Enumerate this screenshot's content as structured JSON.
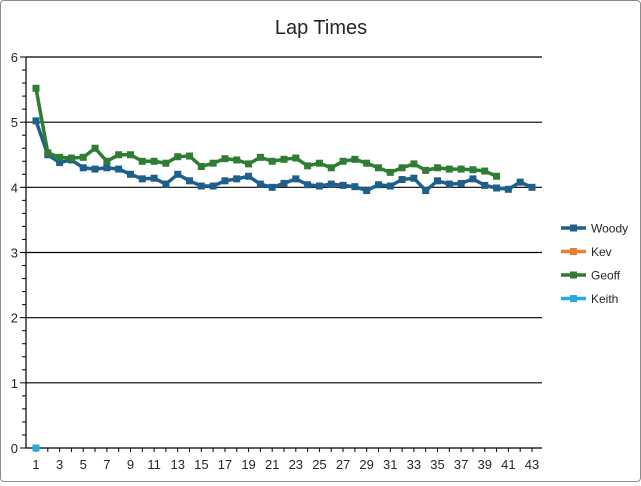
{
  "chart_data": {
    "type": "line",
    "title": "Lap Times",
    "xlabel": "",
    "ylabel": "",
    "ylim": [
      0,
      6
    ],
    "yticks": [
      "0",
      "1",
      "2",
      "3",
      "4",
      "5",
      "6"
    ],
    "xlim": [
      1,
      43
    ],
    "xtick_labels": [
      "1",
      "3",
      "5",
      "7",
      "9",
      "11",
      "13",
      "15",
      "17",
      "19",
      "21",
      "23",
      "25",
      "27",
      "29",
      "31",
      "33",
      "35",
      "37",
      "39",
      "41",
      "43"
    ],
    "grid": "horizontal major gridlines",
    "legend_position": "right",
    "series": [
      {
        "name": "Woody",
        "color": "#1f5f8b",
        "marker": "square",
        "values": [
          5.02,
          4.5,
          4.38,
          4.42,
          4.3,
          4.28,
          4.3,
          4.28,
          4.2,
          4.13,
          4.14,
          4.05,
          4.2,
          4.1,
          4.02,
          4.02,
          4.1,
          4.13,
          4.17,
          4.05,
          4.0,
          4.06,
          4.13,
          4.04,
          4.02,
          4.05,
          4.03,
          4.01,
          3.95,
          4.04,
          4.02,
          4.12,
          4.14,
          3.95,
          4.1,
          4.05,
          4.06,
          4.13,
          4.03,
          3.99,
          3.97,
          4.08,
          4.0
        ]
      },
      {
        "name": "Kev",
        "color": "#ed7d31",
        "marker": "square",
        "values": []
      },
      {
        "name": "Geoff",
        "color": "#2e7d32",
        "marker": "square",
        "values": [
          5.52,
          4.53,
          4.46,
          4.45,
          4.46,
          4.6,
          4.4,
          4.5,
          4.5,
          4.4,
          4.4,
          4.37,
          4.47,
          4.48,
          4.32,
          4.37,
          4.44,
          4.42,
          4.36,
          4.46,
          4.4,
          4.43,
          4.45,
          4.33,
          4.37,
          4.3,
          4.4,
          4.43,
          4.37,
          4.3,
          4.23,
          4.3,
          4.36,
          4.26,
          4.3,
          4.28,
          4.28,
          4.27,
          4.25,
          4.17
        ]
      },
      {
        "name": "Keith",
        "color": "#27aae1",
        "marker": "square",
        "values": [
          0
        ]
      }
    ]
  }
}
